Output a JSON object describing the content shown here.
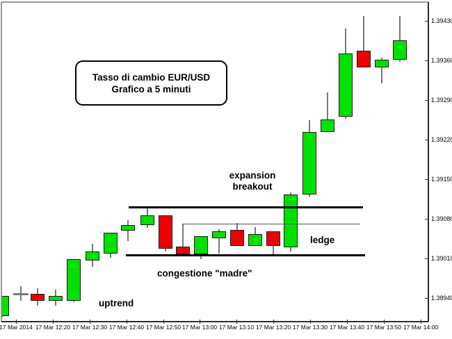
{
  "title_box": {
    "line1": "Tasso di cambio EUR/USD",
    "line2": "Grafico a 5 minuti"
  },
  "annotations": {
    "expansion_line1": "expansion",
    "expansion_line2": "breakout",
    "ledge": "ledge",
    "congestione": "congestione \"madre\"",
    "uptrend": "uptrend"
  },
  "colors": {
    "candle_up": "#00e100",
    "candle_down": "#ee0000",
    "candle_border": "#1b1b1b",
    "wick": "#787878",
    "doji": "#787878",
    "level_line": "#000000",
    "ledge_line": "#555555",
    "frame": "#9a9a9a",
    "axis": "#2e2e2e",
    "background": "#ffffff"
  },
  "chart_data": {
    "type": "candlestick",
    "title": "Tasso di cambio EUR/USD — Grafico a 5 minuti",
    "instrument": "EUR/USD",
    "timeframe_minutes": 5,
    "grid": "off",
    "y_axis": {
      "side": "right",
      "min": 1.389,
      "max": 1.39445,
      "ticks": [
        "1.39430",
        "1.39360",
        "1.39290",
        "1.39220",
        "1.39150",
        "1.39080",
        "1.39010",
        "1.38940"
      ]
    },
    "x_axis": {
      "ticks": [
        "17 Mar 2014",
        "17 Mar 12:20",
        "17 Mar 12:30",
        "17 Mar 12:40",
        "17 Mar 12:50",
        "17 Mar 13:00",
        "17 Mar 13:10",
        "17 Mar 13:20",
        "17 Mar 13:30",
        "17 Mar 13:40",
        "17 Mar 13:50",
        "17 Mar 14:00"
      ]
    },
    "candles": [
      {
        "time": "12:05",
        "open": 1.38908,
        "high": 1.38944,
        "low": 1.38906,
        "close": 1.38944,
        "direction": "up"
      },
      {
        "time": "12:10",
        "open": 1.38947,
        "high": 1.38961,
        "low": 1.38935,
        "close": 1.38947,
        "direction": "doji"
      },
      {
        "time": "12:15",
        "open": 1.38947,
        "high": 1.38957,
        "low": 1.38927,
        "close": 1.38935,
        "direction": "down"
      },
      {
        "time": "12:20",
        "open": 1.38935,
        "high": 1.38955,
        "low": 1.38927,
        "close": 1.38944,
        "direction": "up"
      },
      {
        "time": "12:25",
        "open": 1.38935,
        "high": 1.39009,
        "low": 1.38933,
        "close": 1.39009,
        "direction": "up"
      },
      {
        "time": "12:30",
        "open": 1.39006,
        "high": 1.39036,
        "low": 1.38995,
        "close": 1.39022,
        "direction": "up"
      },
      {
        "time": "12:35",
        "open": 1.39019,
        "high": 1.39055,
        "low": 1.39011,
        "close": 1.39055,
        "direction": "up"
      },
      {
        "time": "12:40",
        "open": 1.39059,
        "high": 1.39078,
        "low": 1.39041,
        "close": 1.39069,
        "direction": "up"
      },
      {
        "time": "12:45",
        "open": 1.39069,
        "high": 1.39101,
        "low": 1.39064,
        "close": 1.39086,
        "direction": "up"
      },
      {
        "time": "12:50",
        "open": 1.39086,
        "high": 1.39086,
        "low": 1.39022,
        "close": 1.39027,
        "direction": "down"
      },
      {
        "time": "12:55",
        "open": 1.39031,
        "high": 1.39071,
        "low": 1.39014,
        "close": 1.39017,
        "direction": "down"
      },
      {
        "time": "13:00",
        "open": 1.39017,
        "high": 1.39049,
        "low": 1.39009,
        "close": 1.39049,
        "direction": "up"
      },
      {
        "time": "13:05",
        "open": 1.39046,
        "high": 1.39062,
        "low": 1.39019,
        "close": 1.39058,
        "direction": "up"
      },
      {
        "time": "13:10",
        "open": 1.3906,
        "high": 1.39073,
        "low": 1.39032,
        "close": 1.39032,
        "direction": "down"
      },
      {
        "time": "13:15",
        "open": 1.39032,
        "high": 1.39065,
        "low": 1.39032,
        "close": 1.39053,
        "direction": "up"
      },
      {
        "time": "13:20",
        "open": 1.39058,
        "high": 1.39058,
        "low": 1.39015,
        "close": 1.39032,
        "direction": "down"
      },
      {
        "time": "13:25",
        "open": 1.3903,
        "high": 1.39127,
        "low": 1.39022,
        "close": 1.39123,
        "direction": "up"
      },
      {
        "time": "13:30",
        "open": 1.39123,
        "high": 1.39254,
        "low": 1.39119,
        "close": 1.39234,
        "direction": "up"
      },
      {
        "time": "13:35",
        "open": 1.39234,
        "high": 1.39304,
        "low": 1.39234,
        "close": 1.39256,
        "direction": "up"
      },
      {
        "time": "13:40",
        "open": 1.39261,
        "high": 1.39417,
        "low": 1.39257,
        "close": 1.39372,
        "direction": "up"
      },
      {
        "time": "13:45",
        "open": 1.39377,
        "high": 1.39439,
        "low": 1.39348,
        "close": 1.39348,
        "direction": "down"
      },
      {
        "time": "13:50",
        "open": 1.39348,
        "high": 1.39365,
        "low": 1.39319,
        "close": 1.39361,
        "direction": "up"
      },
      {
        "time": "13:55",
        "open": 1.39361,
        "high": 1.39439,
        "low": 1.39358,
        "close": 1.39396,
        "direction": "up"
      }
    ],
    "levels": [
      {
        "name": "congestion-top",
        "price": 1.391,
        "style": "thick"
      },
      {
        "name": "ledge",
        "price": 1.39071,
        "style": "thin"
      },
      {
        "name": "congestion-bottom",
        "price": 1.39016,
        "style": "thick"
      }
    ]
  }
}
